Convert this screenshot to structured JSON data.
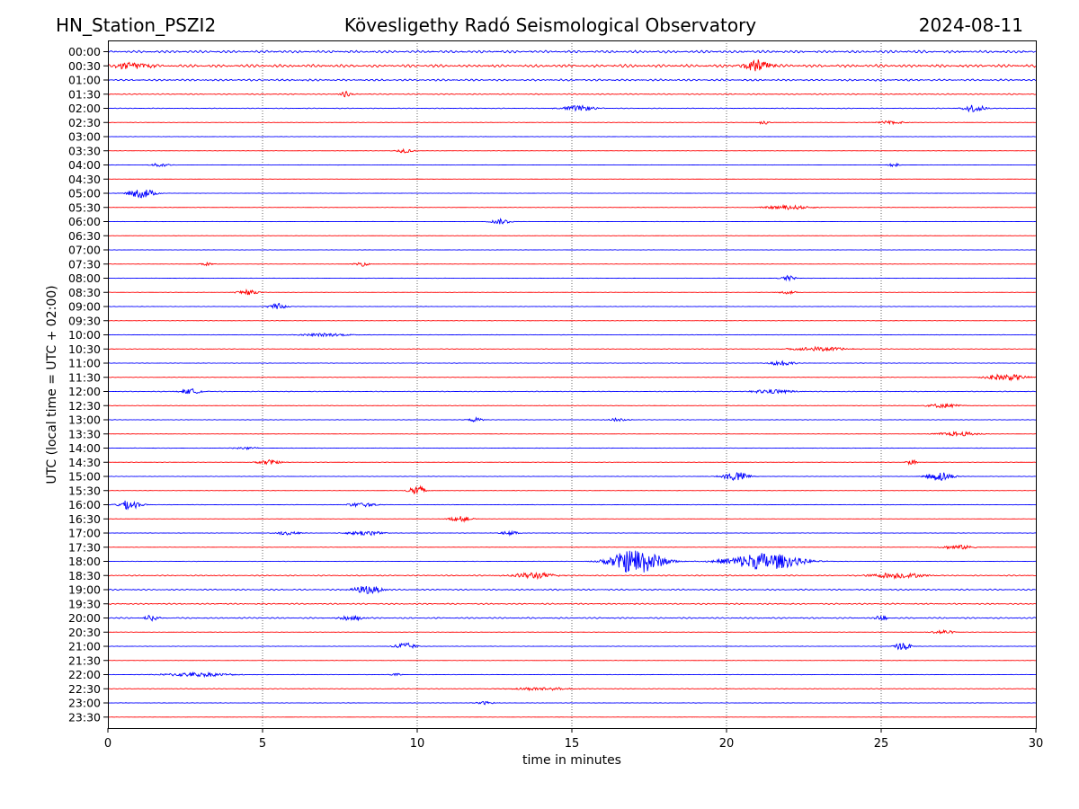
{
  "chart_data": {
    "type": "seismogram-helicorder",
    "header": {
      "station": "HN_Station_PSZI2",
      "observatory": "Kövesligethy Radó Seismological Observatory",
      "date": "2024-08-11"
    },
    "xlabel": "time in minutes",
    "ylabel": "UTC (local time = UTC + 02:00)",
    "xlim": [
      0,
      30
    ],
    "xticks": [
      0,
      5,
      10,
      15,
      20,
      25,
      30
    ],
    "vertical_grid_minutes": [
      5,
      10,
      15,
      20,
      25
    ],
    "line_colors": [
      "#0000ff",
      "#ff0000"
    ],
    "rows": [
      {
        "label": "00:00",
        "noise": 0.9,
        "events": []
      },
      {
        "label": "00:30",
        "noise": 1.0,
        "events": [
          {
            "t": 21.0,
            "amp": 1.0,
            "dur": 1.0
          },
          {
            "t": 0.8,
            "amp": 0.6,
            "dur": 1.5
          }
        ]
      },
      {
        "label": "01:00",
        "noise": 0.7,
        "events": []
      },
      {
        "label": "01:30",
        "noise": 0.4,
        "events": [
          {
            "t": 7.7,
            "amp": 0.5,
            "dur": 0.4
          }
        ]
      },
      {
        "label": "02:00",
        "noise": 0.25,
        "events": [
          {
            "t": 15.2,
            "amp": 0.5,
            "dur": 1.2
          },
          {
            "t": 28.0,
            "amp": 0.7,
            "dur": 0.8
          }
        ]
      },
      {
        "label": "02:30",
        "noise": 0.15,
        "events": [
          {
            "t": 21.2,
            "amp": 0.4,
            "dur": 0.3
          },
          {
            "t": 25.3,
            "amp": 0.3,
            "dur": 1.0
          }
        ]
      },
      {
        "label": "03:00",
        "noise": 0.12,
        "events": []
      },
      {
        "label": "03:30",
        "noise": 0.12,
        "events": [
          {
            "t": 9.6,
            "amp": 0.4,
            "dur": 0.6
          }
        ]
      },
      {
        "label": "04:00",
        "noise": 0.1,
        "events": [
          {
            "t": 1.7,
            "amp": 0.4,
            "dur": 0.6
          },
          {
            "t": 25.4,
            "amp": 0.4,
            "dur": 0.3
          }
        ]
      },
      {
        "label": "04:30",
        "noise": 0.08,
        "events": []
      },
      {
        "label": "05:00",
        "noise": 0.1,
        "events": [
          {
            "t": 1.1,
            "amp": 0.9,
            "dur": 0.9
          }
        ]
      },
      {
        "label": "05:30",
        "noise": 0.12,
        "events": [
          {
            "t": 22.0,
            "amp": 0.4,
            "dur": 1.6
          }
        ]
      },
      {
        "label": "06:00",
        "noise": 0.1,
        "events": [
          {
            "t": 12.7,
            "amp": 0.5,
            "dur": 0.7
          }
        ]
      },
      {
        "label": "06:30",
        "noise": 0.1,
        "events": []
      },
      {
        "label": "07:00",
        "noise": 0.12,
        "events": []
      },
      {
        "label": "07:30",
        "noise": 0.12,
        "events": [
          {
            "t": 3.2,
            "amp": 0.3,
            "dur": 0.5
          },
          {
            "t": 8.2,
            "amp": 0.4,
            "dur": 0.5
          }
        ]
      },
      {
        "label": "08:00",
        "noise": 0.12,
        "events": [
          {
            "t": 22.0,
            "amp": 0.5,
            "dur": 0.5
          }
        ]
      },
      {
        "label": "08:30",
        "noise": 0.12,
        "events": [
          {
            "t": 4.5,
            "amp": 0.5,
            "dur": 0.7
          },
          {
            "t": 22.0,
            "amp": 0.3,
            "dur": 0.6
          }
        ]
      },
      {
        "label": "09:00",
        "noise": 0.15,
        "events": [
          {
            "t": 5.5,
            "amp": 0.6,
            "dur": 0.6
          }
        ]
      },
      {
        "label": "09:30",
        "noise": 0.15,
        "events": []
      },
      {
        "label": "10:00",
        "noise": 0.15,
        "events": [
          {
            "t": 7.0,
            "amp": 0.3,
            "dur": 1.8
          }
        ]
      },
      {
        "label": "10:30",
        "noise": 0.2,
        "events": [
          {
            "t": 23.0,
            "amp": 0.4,
            "dur": 2.0
          }
        ]
      },
      {
        "label": "11:00",
        "noise": 0.18,
        "events": [
          {
            "t": 21.8,
            "amp": 0.5,
            "dur": 0.8
          }
        ]
      },
      {
        "label": "11:30",
        "noise": 0.15,
        "events": [
          {
            "t": 29.0,
            "amp": 0.6,
            "dur": 1.5
          }
        ]
      },
      {
        "label": "12:00",
        "noise": 0.25,
        "events": [
          {
            "t": 2.7,
            "amp": 0.5,
            "dur": 0.8
          },
          {
            "t": 21.5,
            "amp": 0.4,
            "dur": 1.5
          }
        ]
      },
      {
        "label": "12:30",
        "noise": 0.15,
        "events": [
          {
            "t": 27.0,
            "amp": 0.4,
            "dur": 1.2
          }
        ]
      },
      {
        "label": "13:00",
        "noise": 0.18,
        "events": [
          {
            "t": 11.9,
            "amp": 0.4,
            "dur": 0.5
          },
          {
            "t": 16.5,
            "amp": 0.3,
            "dur": 0.8
          }
        ]
      },
      {
        "label": "13:30",
        "noise": 0.12,
        "events": [
          {
            "t": 27.5,
            "amp": 0.4,
            "dur": 1.5
          }
        ]
      },
      {
        "label": "14:00",
        "noise": 0.15,
        "events": [
          {
            "t": 4.5,
            "amp": 0.3,
            "dur": 0.8
          }
        ]
      },
      {
        "label": "14:30",
        "noise": 0.15,
        "events": [
          {
            "t": 5.2,
            "amp": 0.5,
            "dur": 0.8
          },
          {
            "t": 26.0,
            "amp": 0.5,
            "dur": 0.4
          }
        ]
      },
      {
        "label": "15:00",
        "noise": 0.15,
        "events": [
          {
            "t": 20.3,
            "amp": 0.9,
            "dur": 0.9
          },
          {
            "t": 26.9,
            "amp": 0.9,
            "dur": 0.9
          }
        ]
      },
      {
        "label": "15:30",
        "noise": 0.12,
        "events": [
          {
            "t": 10.0,
            "amp": 1.0,
            "dur": 0.6
          }
        ]
      },
      {
        "label": "16:00",
        "noise": 0.15,
        "events": [
          {
            "t": 0.7,
            "amp": 0.9,
            "dur": 0.8
          },
          {
            "t": 8.2,
            "amp": 0.4,
            "dur": 1.0
          }
        ]
      },
      {
        "label": "16:30",
        "noise": 0.1,
        "events": [
          {
            "t": 11.4,
            "amp": 0.5,
            "dur": 0.8
          }
        ]
      },
      {
        "label": "17:00",
        "noise": 0.15,
        "events": [
          {
            "t": 5.8,
            "amp": 0.4,
            "dur": 0.8
          },
          {
            "t": 8.3,
            "amp": 0.5,
            "dur": 1.2
          },
          {
            "t": 13.0,
            "amp": 0.4,
            "dur": 0.6
          }
        ]
      },
      {
        "label": "17:30",
        "noise": 0.12,
        "events": [
          {
            "t": 27.5,
            "amp": 0.4,
            "dur": 1.2
          }
        ]
      },
      {
        "label": "18:00",
        "noise": 0.15,
        "events": [
          {
            "t": 17.1,
            "amp": 2.4,
            "dur": 1.8
          },
          {
            "t": 21.2,
            "amp": 1.6,
            "dur": 2.6
          }
        ]
      },
      {
        "label": "18:30",
        "noise": 0.4,
        "events": [
          {
            "t": 13.8,
            "amp": 0.6,
            "dur": 1.5
          },
          {
            "t": 25.5,
            "amp": 0.5,
            "dur": 2.0
          }
        ]
      },
      {
        "label": "19:00",
        "noise": 0.5,
        "events": [
          {
            "t": 8.4,
            "amp": 0.8,
            "dur": 1.0
          }
        ]
      },
      {
        "label": "19:30",
        "noise": 0.45,
        "events": []
      },
      {
        "label": "20:00",
        "noise": 0.5,
        "events": [
          {
            "t": 1.4,
            "amp": 0.6,
            "dur": 0.5
          },
          {
            "t": 7.9,
            "amp": 0.6,
            "dur": 0.8
          },
          {
            "t": 25.0,
            "amp": 0.6,
            "dur": 0.4
          }
        ]
      },
      {
        "label": "20:30",
        "noise": 0.15,
        "events": [
          {
            "t": 27.0,
            "amp": 0.4,
            "dur": 0.8
          }
        ]
      },
      {
        "label": "21:00",
        "noise": 0.15,
        "events": [
          {
            "t": 9.6,
            "amp": 0.7,
            "dur": 0.7
          },
          {
            "t": 25.7,
            "amp": 0.9,
            "dur": 0.5
          }
        ]
      },
      {
        "label": "21:30",
        "noise": 0.1,
        "events": []
      },
      {
        "label": "22:00",
        "noise": 0.15,
        "events": [
          {
            "t": 2.9,
            "amp": 0.4,
            "dur": 2.4
          },
          {
            "t": 9.3,
            "amp": 0.3,
            "dur": 0.4
          }
        ]
      },
      {
        "label": "22:30",
        "noise": 0.25,
        "events": [
          {
            "t": 14.0,
            "amp": 0.3,
            "dur": 2.0
          }
        ]
      },
      {
        "label": "23:00",
        "noise": 0.15,
        "events": [
          {
            "t": 12.2,
            "amp": 0.3,
            "dur": 0.6
          }
        ]
      },
      {
        "label": "23:30",
        "noise": 0.1,
        "events": []
      }
    ]
  }
}
